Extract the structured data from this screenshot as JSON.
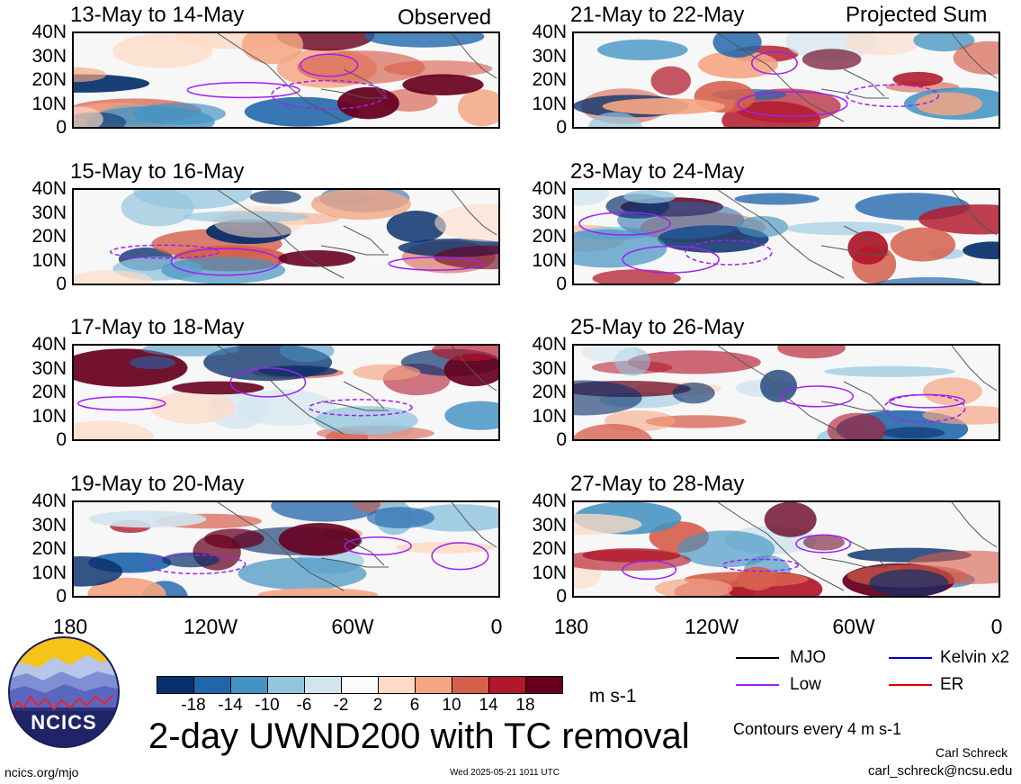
{
  "corner_labels": {
    "left": "Observed",
    "right": "Projected Sum"
  },
  "panels": [
    {
      "title": "13-May to 14-May",
      "column": "left",
      "seed": 1
    },
    {
      "title": "15-May to 16-May",
      "column": "left",
      "seed": 2
    },
    {
      "title": "17-May to 18-May",
      "column": "left",
      "seed": 3
    },
    {
      "title": "19-May to 20-May",
      "column": "left",
      "seed": 4
    },
    {
      "title": "21-May to 22-May",
      "column": "right",
      "seed": 5
    },
    {
      "title": "23-May to 24-May",
      "column": "right",
      "seed": 6
    },
    {
      "title": "25-May to 26-May",
      "column": "right",
      "seed": 7
    },
    {
      "title": "27-May to 28-May",
      "column": "right",
      "seed": 8
    }
  ],
  "y_ticks": [
    "40N",
    "30N",
    "20N",
    "10N",
    "0"
  ],
  "x_ticks": [
    "180",
    "120W",
    "60W",
    "0"
  ],
  "colorbar": {
    "labels": [
      "-18",
      "-14",
      "-10",
      "-6",
      "-2",
      "2",
      "6",
      "10",
      "14",
      "18"
    ],
    "colors": [
      "#08306b",
      "#2166ac",
      "#4393c3",
      "#92c5de",
      "#d1e5f0",
      "#fbfbfb",
      "#fddbc7",
      "#f4a582",
      "#d6604d",
      "#b2182b",
      "#67001f"
    ],
    "unit": "m s-1"
  },
  "main_title": "2-day UWND200 with TC removal",
  "legend": [
    {
      "label": "MJO",
      "color": "#000000"
    },
    {
      "label": "Kelvin x2",
      "color": "#0000cc"
    },
    {
      "label": "Low",
      "color": "#a020f0"
    },
    {
      "label": "ER",
      "color": "#dd0000"
    }
  ],
  "contour_note": "Contours every 4 m s-1",
  "logo_text": "NCICS",
  "footer_left": "ncics.org/mjo",
  "footer_center": "Wed 2025-05-21 1011 UTC",
  "author_name": "Carl Schreck",
  "author_email": "carl_schreck@ncsu.edu"
}
